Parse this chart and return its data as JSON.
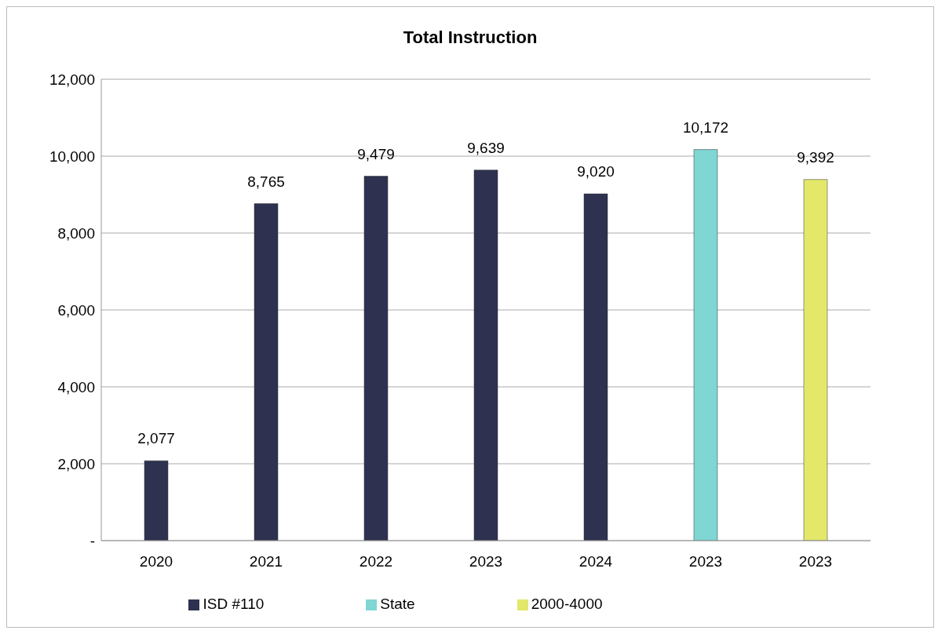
{
  "chart_data": {
    "type": "bar",
    "title": "Total Instruction",
    "categories": [
      "2020",
      "2021",
      "2022",
      "2023",
      "2024",
      "2023",
      "2023"
    ],
    "series": [
      {
        "name": "ISD #110",
        "color": "#2e3250",
        "values": [
          2077,
          8765,
          9479,
          9639,
          9020,
          null,
          null
        ],
        "value_labels": [
          "2,077",
          "8,765",
          "9,479",
          "9,639",
          "9,020",
          null,
          null
        ]
      },
      {
        "name": "State",
        "color": "#7fd6d3",
        "values": [
          null,
          null,
          null,
          null,
          null,
          10172,
          null
        ],
        "value_labels": [
          null,
          null,
          null,
          null,
          null,
          "10,172",
          null
        ]
      },
      {
        "name": "2000-4000",
        "color": "#e3e86a",
        "values": [
          null,
          null,
          null,
          null,
          null,
          null,
          9392
        ],
        "value_labels": [
          null,
          null,
          null,
          null,
          null,
          null,
          "9,392"
        ]
      }
    ],
    "ylim": [
      0,
      12000
    ],
    "yticks": [
      {
        "value": 0,
        "label": "-"
      },
      {
        "value": 2000,
        "label": "2,000"
      },
      {
        "value": 4000,
        "label": "4,000"
      },
      {
        "value": 6000,
        "label": "6,000"
      },
      {
        "value": 8000,
        "label": "8,000"
      },
      {
        "value": 10000,
        "label": "10,000"
      },
      {
        "value": 12000,
        "label": "12,000"
      }
    ],
    "grid": "y",
    "legend": "bottom"
  }
}
